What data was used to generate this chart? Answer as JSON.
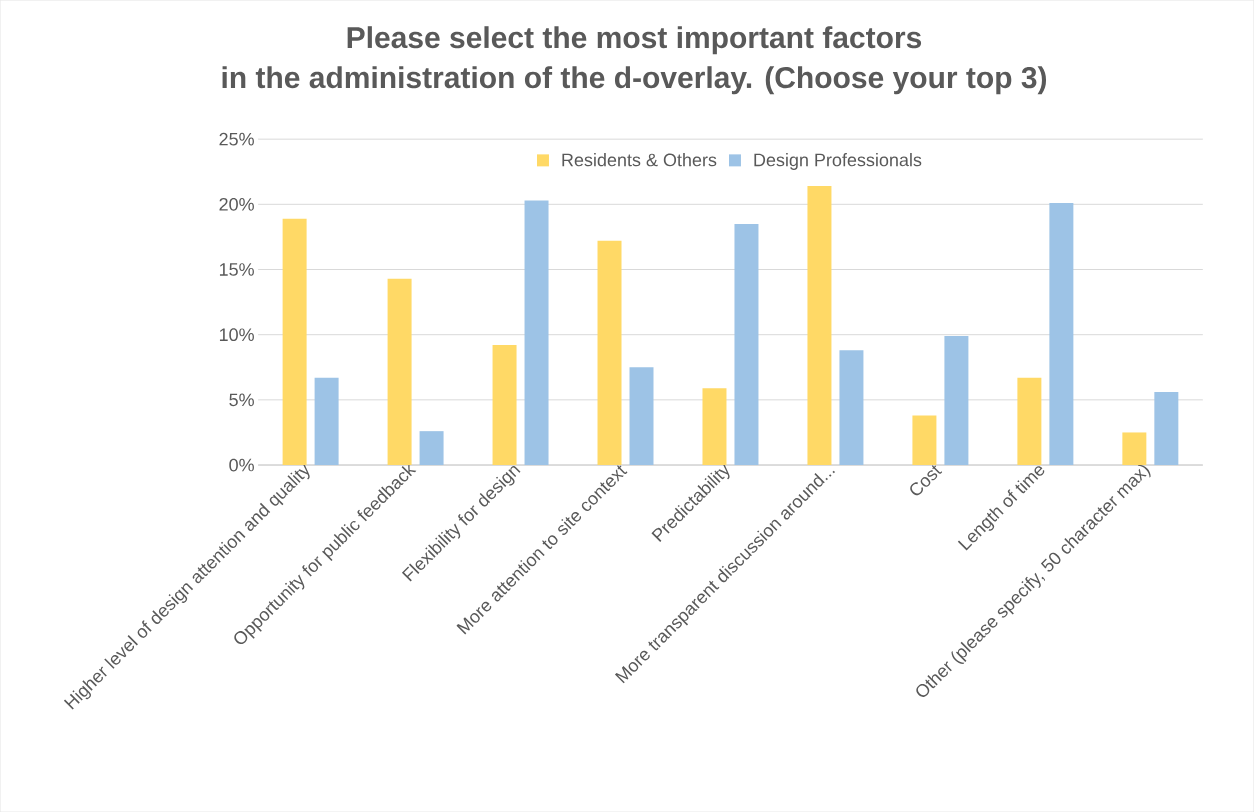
{
  "chart_data": {
    "type": "bar",
    "title": "Please select the most important factors\nin the administration of the d-overlay. (Choose your top 3)",
    "categories": [
      "Higher level of design attention and quality",
      "Opportunity for public feedback",
      "Flexibility for design",
      "More attention to site context",
      "Predictability",
      "More transparent discussion around...",
      "Cost",
      "Length of time",
      "Other (please specify, 50 character max)"
    ],
    "series": [
      {
        "name": "Residents & Others",
        "color": "#ffd966",
        "values": [
          18.9,
          14.3,
          9.2,
          17.2,
          5.9,
          21.4,
          3.8,
          6.7,
          2.5
        ]
      },
      {
        "name": "Design Professionals",
        "color": "#9dc3e6",
        "values": [
          6.7,
          2.6,
          20.3,
          7.5,
          18.5,
          8.8,
          9.9,
          20.1,
          5.6
        ]
      }
    ],
    "ylim": [
      0,
      25
    ],
    "yticks": [
      {
        "value": 0,
        "label": "0%"
      },
      {
        "value": 5,
        "label": "5%"
      },
      {
        "value": 10,
        "label": "10%"
      },
      {
        "value": 15,
        "label": "15%"
      },
      {
        "value": 20,
        "label": "20%"
      },
      {
        "value": 25,
        "label": "25%"
      }
    ],
    "grid": "y",
    "legend": "top"
  }
}
